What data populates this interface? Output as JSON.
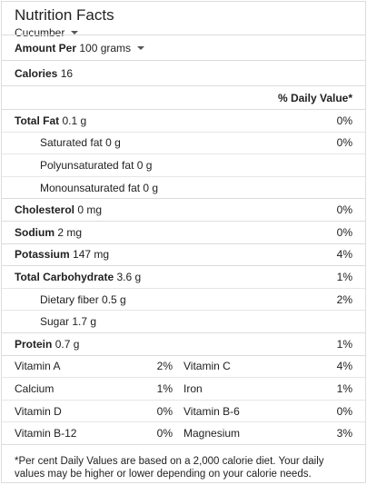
{
  "header": {
    "title": "Nutrition Facts",
    "food_selector": "Cucumber"
  },
  "amount": {
    "label": "Amount Per",
    "unit": "100 grams"
  },
  "calories": {
    "label": "Calories",
    "value": "16"
  },
  "dv_header": "% Daily Value*",
  "nutrients": [
    {
      "name": "Total Fat",
      "amount": "0.1 g",
      "pct": "0%"
    },
    {
      "name": "Saturated fat",
      "amount": "0 g",
      "pct": "0%"
    },
    {
      "name": "Polyunsaturated fat",
      "amount": "0 g",
      "pct": ""
    },
    {
      "name": "Monounsaturated fat",
      "amount": "0 g",
      "pct": ""
    },
    {
      "name": "Cholesterol",
      "amount": "0 mg",
      "pct": "0%"
    },
    {
      "name": "Sodium",
      "amount": "2 mg",
      "pct": "0%"
    },
    {
      "name": "Potassium",
      "amount": "147 mg",
      "pct": "4%"
    },
    {
      "name": "Total Carbohydrate",
      "amount": "3.6 g",
      "pct": "1%"
    },
    {
      "name": "Dietary fiber",
      "amount": "0.5 g",
      "pct": "2%"
    },
    {
      "name": "Sugar",
      "amount": "1.7 g",
      "pct": ""
    },
    {
      "name": "Protein",
      "amount": "0.7 g",
      "pct": "1%"
    }
  ],
  "vitamins": [
    {
      "left_name": "Vitamin A",
      "left_pct": "2%",
      "right_name": "Vitamin C",
      "right_pct": "4%"
    },
    {
      "left_name": "Calcium",
      "left_pct": "1%",
      "right_name": "Iron",
      "right_pct": "1%"
    },
    {
      "left_name": "Vitamin D",
      "left_pct": "0%",
      "right_name": "Vitamin B-6",
      "right_pct": "0%"
    },
    {
      "left_name": "Vitamin B-12",
      "left_pct": "0%",
      "right_name": "Magnesium",
      "right_pct": "3%"
    }
  ],
  "footnote": "*Per cent Daily Values are based on a 2,000 calorie diet. Your daily values may be higher or lower depending on your calorie needs."
}
